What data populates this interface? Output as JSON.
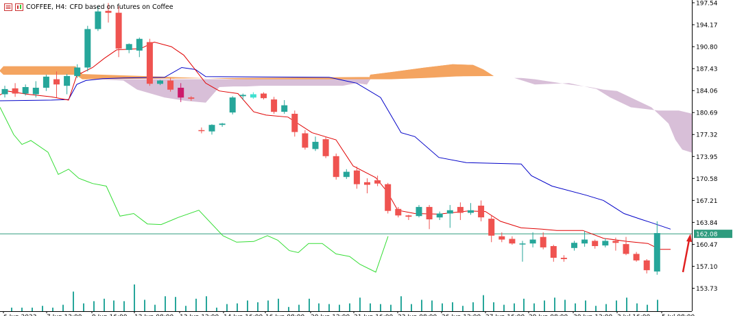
{
  "header": {
    "symbol": "COFFEE, H4:",
    "description": "CFD based on futures on Coffee",
    "menu_icon": "symbol-properties-icon",
    "indicator_icon": "indicators-list-icon"
  },
  "colors": {
    "bull": "#26a69a",
    "bear": "#ef5350",
    "tenkan": "#e00000",
    "kijun": "#0000c8",
    "chikou": "#33dd33",
    "kumo_bull": "#f4a460",
    "kumo_bear": "#d8bfd8",
    "price_line": "#2e9b7e",
    "arrow": "#e02020",
    "volume": "#26a69a",
    "special_candle": "#cc1a6b",
    "special_candle2": "#40e0d0"
  },
  "chart_data": {
    "type": "candlestick",
    "timeframe": "H4",
    "ylim": [
      151.5,
      197.54
    ],
    "y_ticks": [
      "197.54",
      "194.17",
      "190.80",
      "187.43",
      "184.06",
      "180.69",
      "177.32",
      "173.95",
      "170.58",
      "167.21",
      "163.84",
      "160.47",
      "157.10",
      "153.73"
    ],
    "x_tick_labels": [
      "6 Jun 2023",
      "7 Jun 12:00",
      "9 Jun 16:00",
      "12 Jun 08:00",
      "13 Jun 12:00",
      "14 Jun 16:00",
      "16 Jun 08:00",
      "20 Jun 12:00",
      "21 Jun 16:00",
      "23 Jun 08:00",
      "26 Jun 12:00",
      "27 Jun 16:00",
      "29 Jun 08:00",
      "30 Jun 12:00",
      "3 Jul 16:00",
      "5 Jul 08:00"
    ],
    "current_price": "162.08",
    "candles": [
      {
        "o": 183.5,
        "h": 184.8,
        "c": 184.3,
        "l": 183.0
      },
      {
        "o": 184.4,
        "h": 185.2,
        "c": 183.6,
        "l": 183.1
      },
      {
        "o": 183.6,
        "h": 185.0,
        "c": 184.6,
        "l": 183.3
      },
      {
        "o": 183.5,
        "h": 185.5,
        "c": 184.5,
        "l": 183.0
      },
      {
        "o": 184.5,
        "h": 186.5,
        "c": 186.2,
        "l": 184.0
      },
      {
        "o": 185.8,
        "h": 187.0,
        "c": 185.0,
        "l": 183.0
      },
      {
        "o": 184.8,
        "h": 186.6,
        "c": 186.3,
        "l": 183.5
      },
      {
        "o": 186.3,
        "h": 188.1,
        "c": 187.6,
        "l": 186.0
      },
      {
        "o": 187.6,
        "h": 194.0,
        "c": 193.5,
        "l": 187.0
      },
      {
        "o": 193.5,
        "h": 197.0,
        "c": 196.2,
        "l": 193.2
      },
      {
        "o": 196.3,
        "h": 197.5,
        "c": 196.0,
        "l": 194.5
      },
      {
        "o": 196.0,
        "h": 197.0,
        "c": 190.5,
        "l": 189.2
      },
      {
        "o": 190.3,
        "h": 191.3,
        "c": 191.2,
        "l": 189.8
      },
      {
        "o": 190.2,
        "h": 192.2,
        "c": 192.0,
        "l": 189.2
      },
      {
        "o": 191.5,
        "h": 192.0,
        "c": 185.1,
        "l": 184.8
      },
      {
        "o": 185.1,
        "h": 185.7,
        "c": 185.6,
        "l": 184.9
      },
      {
        "o": 185.6,
        "h": 186.0,
        "c": 184.2,
        "l": 183.9
      },
      {
        "o": 184.5,
        "h": 185.2,
        "c": 183.0,
        "l": 182.3
      },
      {
        "o": 183.0,
        "h": 183.2,
        "c": 182.8,
        "l": 182.5
      },
      {
        "o": 178.0,
        "h": 178.4,
        "c": 177.9,
        "l": 177.5
      },
      {
        "o": 177.8,
        "h": 178.9,
        "c": 178.8,
        "l": 177.3
      },
      {
        "o": 178.8,
        "h": 179.1,
        "c": 179.0,
        "l": 178.5
      },
      {
        "o": 180.7,
        "h": 183.2,
        "c": 183.0,
        "l": 180.4
      },
      {
        "o": 183.2,
        "h": 183.6,
        "c": 183.4,
        "l": 182.6
      },
      {
        "o": 183.0,
        "h": 183.8,
        "c": 183.5,
        "l": 182.8
      },
      {
        "o": 183.6,
        "h": 183.8,
        "c": 182.9,
        "l": 182.7
      },
      {
        "o": 182.7,
        "h": 183.1,
        "c": 180.8,
        "l": 180.5
      },
      {
        "o": 180.8,
        "h": 182.6,
        "c": 181.8,
        "l": 180.5
      },
      {
        "o": 180.5,
        "h": 181.0,
        "c": 177.7,
        "l": 177.0
      },
      {
        "o": 177.5,
        "h": 178.0,
        "c": 175.3,
        "l": 175.0
      },
      {
        "o": 175.1,
        "h": 177.0,
        "c": 176.2,
        "l": 174.8
      },
      {
        "o": 176.6,
        "h": 177.0,
        "c": 174.0,
        "l": 173.7
      },
      {
        "o": 174.0,
        "h": 174.4,
        "c": 170.8,
        "l": 170.4
      },
      {
        "o": 170.8,
        "h": 172.0,
        "c": 171.6,
        "l": 170.5
      },
      {
        "o": 171.8,
        "h": 172.4,
        "c": 169.7,
        "l": 169.0
      },
      {
        "o": 170.0,
        "h": 170.6,
        "c": 169.6,
        "l": 168.3
      },
      {
        "o": 170.3,
        "h": 171.0,
        "c": 169.8,
        "l": 169.4
      },
      {
        "o": 169.7,
        "h": 169.9,
        "c": 165.6,
        "l": 165.2
      },
      {
        "o": 165.9,
        "h": 166.2,
        "c": 164.9,
        "l": 164.6
      },
      {
        "o": 164.9,
        "h": 165.0,
        "c": 164.7,
        "l": 164.2
      },
      {
        "o": 164.8,
        "h": 166.5,
        "c": 166.2,
        "l": 164.6
      },
      {
        "o": 166.2,
        "h": 166.5,
        "c": 164.3,
        "l": 162.8
      },
      {
        "o": 164.6,
        "h": 165.5,
        "c": 165.2,
        "l": 164.2
      },
      {
        "o": 165.2,
        "h": 166.5,
        "c": 165.7,
        "l": 163.0
      },
      {
        "o": 166.2,
        "h": 166.9,
        "c": 165.3,
        "l": 164.2
      },
      {
        "o": 165.3,
        "h": 166.8,
        "c": 165.7,
        "l": 165.0
      },
      {
        "o": 166.4,
        "h": 167.2,
        "c": 164.6,
        "l": 164.0
      },
      {
        "o": 164.4,
        "h": 164.9,
        "c": 161.8,
        "l": 160.8
      },
      {
        "o": 161.7,
        "h": 162.3,
        "c": 161.2,
        "l": 160.8
      },
      {
        "o": 161.3,
        "h": 161.7,
        "c": 160.6,
        "l": 160.4
      },
      {
        "o": 160.5,
        "h": 161.0,
        "c": 160.6,
        "l": 157.8
      },
      {
        "o": 160.6,
        "h": 162.3,
        "c": 161.2,
        "l": 160.0
      },
      {
        "o": 161.6,
        "h": 162.3,
        "c": 160.0,
        "l": 159.7
      },
      {
        "o": 160.2,
        "h": 160.4,
        "c": 158.4,
        "l": 157.8
      },
      {
        "o": 158.4,
        "h": 158.8,
        "c": 158.2,
        "l": 157.8
      },
      {
        "o": 159.9,
        "h": 161.0,
        "c": 160.7,
        "l": 159.5
      },
      {
        "o": 160.6,
        "h": 162.5,
        "c": 161.2,
        "l": 160.1
      },
      {
        "o": 161.0,
        "h": 161.2,
        "c": 160.2,
        "l": 159.8
      },
      {
        "o": 160.3,
        "h": 161.4,
        "c": 161.0,
        "l": 160.0
      },
      {
        "o": 161.0,
        "h": 161.5,
        "c": 160.7,
        "l": 159.5
      },
      {
        "o": 160.5,
        "h": 161.6,
        "c": 159.0,
        "l": 158.8
      },
      {
        "o": 159.0,
        "h": 159.3,
        "c": 158.0,
        "l": 157.8
      },
      {
        "o": 158.0,
        "h": 158.2,
        "c": 156.5,
        "l": 156.0
      },
      {
        "o": 156.3,
        "h": 164.0,
        "c": 162.2,
        "l": 155.8
      }
    ],
    "tenkan_sen": [
      [
        0,
        183.4
      ],
      [
        10,
        184.0
      ],
      [
        40,
        183.5
      ],
      [
        75,
        183.1
      ],
      [
        100,
        182.6
      ],
      [
        112,
        186.4
      ],
      [
        135,
        187.6
      ],
      [
        152,
        189.0
      ],
      [
        170,
        190.3
      ],
      [
        205,
        190.5
      ],
      [
        225,
        191.5
      ],
      [
        250,
        190.8
      ],
      [
        268,
        189.5
      ],
      [
        283,
        187.5
      ],
      [
        300,
        185.2
      ],
      [
        320,
        184.0
      ],
      [
        347,
        183.6
      ],
      [
        370,
        180.8
      ],
      [
        388,
        180.3
      ],
      [
        420,
        180.0
      ],
      [
        455,
        177.6
      ],
      [
        490,
        176.5
      ],
      [
        515,
        172.5
      ],
      [
        548,
        170.7
      ],
      [
        565,
        168.5
      ],
      [
        580,
        165.7
      ],
      [
        605,
        165.2
      ],
      [
        640,
        165.1
      ],
      [
        683,
        165.6
      ],
      [
        708,
        165.5
      ],
      [
        730,
        164.0
      ],
      [
        760,
        163.0
      ],
      [
        790,
        162.8
      ],
      [
        812,
        162.6
      ],
      [
        850,
        162.6
      ],
      [
        880,
        161.4
      ],
      [
        915,
        160.9
      ],
      [
        945,
        160.6
      ],
      [
        962,
        159.7
      ],
      [
        978,
        159.7
      ]
    ],
    "kijun_sen": [
      [
        0,
        182.5
      ],
      [
        75,
        182.6
      ],
      [
        100,
        182.7
      ],
      [
        112,
        185.0
      ],
      [
        125,
        185.6
      ],
      [
        150,
        185.9
      ],
      [
        180,
        186.0
      ],
      [
        240,
        186.1
      ],
      [
        265,
        187.6
      ],
      [
        285,
        187.3
      ],
      [
        300,
        186.2
      ],
      [
        480,
        186.1
      ],
      [
        520,
        185.2
      ],
      [
        555,
        183.0
      ],
      [
        570,
        180.3
      ],
      [
        585,
        177.6
      ],
      [
        605,
        177.0
      ],
      [
        640,
        173.8
      ],
      [
        680,
        173.0
      ],
      [
        760,
        172.8
      ],
      [
        775,
        171.0
      ],
      [
        805,
        169.4
      ],
      [
        855,
        168.0
      ],
      [
        880,
        167.2
      ],
      [
        910,
        165.2
      ],
      [
        935,
        164.3
      ],
      [
        950,
        163.8
      ],
      [
        978,
        162.8
      ]
    ],
    "chikou_span": [
      [
        0,
        181.5
      ],
      [
        20,
        177.3
      ],
      [
        32,
        175.8
      ],
      [
        45,
        176.4
      ],
      [
        70,
        174.6
      ],
      [
        85,
        171.2
      ],
      [
        100,
        172.0
      ],
      [
        115,
        170.6
      ],
      [
        135,
        169.8
      ],
      [
        155,
        169.4
      ],
      [
        175,
        164.8
      ],
      [
        195,
        165.2
      ],
      [
        215,
        163.6
      ],
      [
        235,
        163.5
      ],
      [
        260,
        164.6
      ],
      [
        290,
        165.7
      ],
      [
        325,
        161.8
      ],
      [
        345,
        160.8
      ],
      [
        370,
        160.9
      ],
      [
        390,
        161.8
      ],
      [
        405,
        161.1
      ],
      [
        422,
        159.5
      ],
      [
        435,
        159.2
      ],
      [
        450,
        160.6
      ],
      [
        470,
        160.6
      ],
      [
        490,
        159.0
      ],
      [
        510,
        158.6
      ],
      [
        525,
        157.4
      ],
      [
        548,
        156.2
      ],
      [
        566,
        161.7
      ]
    ],
    "senkou_bull": [
      [
        0,
        187.2
      ],
      [
        5,
        187.8
      ],
      [
        110,
        187.8
      ],
      [
        120,
        186.6
      ],
      [
        520,
        185.2
      ],
      [
        535,
        185.0
      ],
      [
        540,
        186.5
      ],
      [
        570,
        186.9
      ],
      [
        620,
        187.6
      ],
      [
        660,
        188.1
      ],
      [
        690,
        188.0
      ],
      [
        705,
        187.3
      ],
      [
        720,
        186.3
      ]
    ],
    "senkou_bear": [
      [
        0,
        187.0
      ],
      [
        5,
        186.5
      ],
      [
        110,
        186.5
      ],
      [
        120,
        185.8
      ],
      [
        140,
        185.8
      ],
      [
        180,
        185.6
      ],
      [
        200,
        184.2
      ],
      [
        240,
        183.0
      ],
      [
        270,
        182.5
      ],
      [
        300,
        182.2
      ],
      [
        320,
        184.6
      ],
      [
        340,
        184.7
      ],
      [
        360,
        184.7
      ],
      [
        380,
        184.8
      ],
      [
        440,
        184.8
      ],
      [
        500,
        184.8
      ],
      [
        520,
        185.2
      ],
      [
        535,
        185.0
      ],
      [
        540,
        185.8
      ],
      [
        570,
        185.8
      ],
      [
        620,
        186.0
      ],
      [
        660,
        186.2
      ],
      [
        700,
        186.4
      ],
      [
        720,
        186.3
      ],
      [
        750,
        186.0
      ],
      [
        780,
        185.0
      ],
      [
        830,
        185.2
      ],
      [
        870,
        184.3
      ],
      [
        890,
        183.0
      ],
      [
        920,
        181.5
      ],
      [
        960,
        181.0
      ],
      [
        990,
        181.0
      ],
      [
        1010,
        180.5
      ]
    ],
    "senkou_bear_lower": [
      [
        0,
        187.0
      ],
      [
        5,
        186.5
      ],
      [
        110,
        186.5
      ],
      [
        120,
        185.8
      ],
      [
        540,
        185.8
      ],
      [
        570,
        185.8
      ],
      [
        620,
        186.0
      ],
      [
        660,
        186.2
      ],
      [
        700,
        186.4
      ],
      [
        720,
        186.3
      ],
      [
        750,
        186.0
      ],
      [
        760,
        186.0
      ],
      [
        780,
        185.8
      ],
      [
        830,
        185.0
      ],
      [
        860,
        184.6
      ],
      [
        880,
        184.2
      ],
      [
        900,
        184.0
      ],
      [
        920,
        183.0
      ],
      [
        950,
        181.5
      ],
      [
        975,
        179.0
      ],
      [
        985,
        176.5
      ],
      [
        995,
        175.0
      ],
      [
        1010,
        174.5
      ]
    ],
    "volumes": [
      0.1,
      0.1,
      0.1,
      0.15,
      0.1,
      0.18,
      0.55,
      0.22,
      0.28,
      0.35,
      0.3,
      0.28,
      0.75,
      0.32,
      0.18,
      0.42,
      0.4,
      0.15,
      0.35,
      0.42,
      0.1,
      0.2,
      0.22,
      0.3,
      0.25,
      0.3,
      0.35,
      0.12,
      0.18,
      0.35,
      0.22,
      0.2,
      0.18,
      0.22,
      0.38,
      0.22,
      0.2,
      0.18,
      0.42,
      0.2,
      0.32,
      0.3,
      0.22,
      0.25,
      0.15,
      0.25,
      0.45,
      0.25,
      0.18,
      0.22,
      0.35,
      0.22,
      0.3,
      0.38,
      0.32,
      0.22,
      0.3,
      0.15,
      0.2,
      0.3,
      0.38,
      0.22,
      0.18,
      0.32
    ]
  }
}
